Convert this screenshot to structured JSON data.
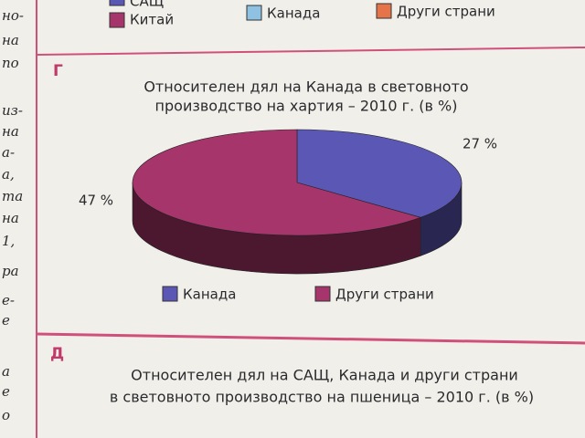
{
  "page": {
    "top_legend": [
      "САЩ",
      "Китай",
      "Канада",
      "Други страни"
    ],
    "margin_text": [
      "но-",
      "на",
      "по",
      "из-",
      "на",
      "а-",
      "а,",
      "та",
      "на",
      "1,",
      "ра",
      "е-",
      "е",
      "а",
      "е",
      "о"
    ],
    "section_g": "Г",
    "section_d": "Д",
    "next_title": [
      "Относителен дял на САЩ, Канада и други страни",
      "в световното производство на пшеница – 2010 г. (в %)"
    ]
  },
  "chart_data": {
    "type": "pie",
    "title": [
      "Относителен дял  на Канада в световното",
      "производство на хартия – 2010 г. (в %)"
    ],
    "categories": [
      "Канада",
      "Други страни"
    ],
    "values": [
      27,
      47
    ],
    "value_labels": [
      "27 %",
      "47 %"
    ],
    "colors": [
      "#5b57b5",
      "#a6356b"
    ]
  }
}
